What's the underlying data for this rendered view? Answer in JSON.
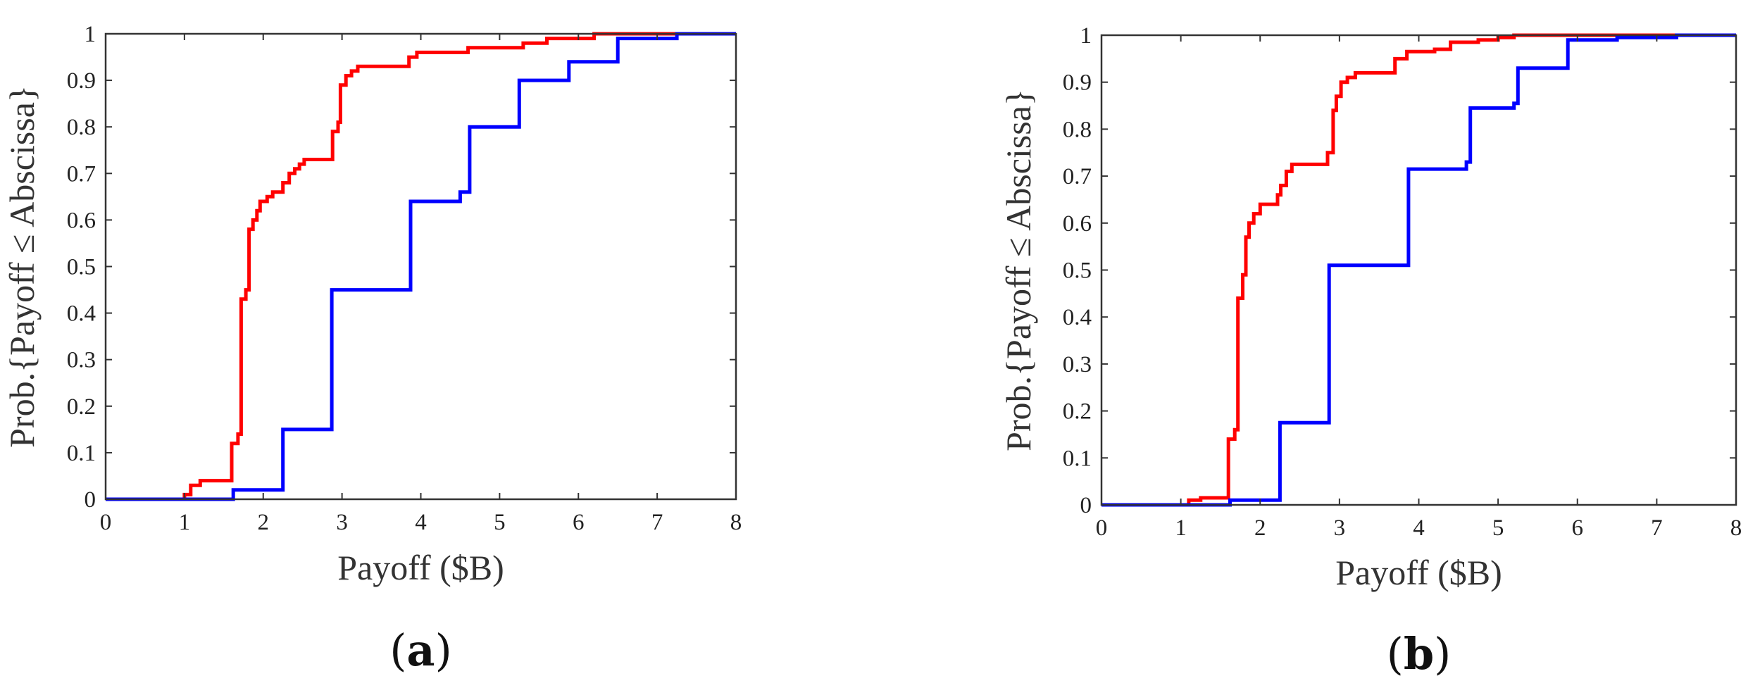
{
  "chart_data": [
    {
      "type": "line",
      "panel_label": "a",
      "xlabel": "Payoff ($B)",
      "ylabel": "Prob.{Payoff ≤ Abscissa}",
      "xlim": [
        0,
        8
      ],
      "ylim": [
        0,
        1
      ],
      "xticks": [
        "0",
        "1",
        "2",
        "3",
        "4",
        "5",
        "6",
        "7",
        "8"
      ],
      "yticks": [
        "0",
        "0.1",
        "0.2",
        "0.3",
        "0.4",
        "0.5",
        "0.6",
        "0.7",
        "0.8",
        "0.9",
        "1"
      ],
      "grid": false,
      "series": [
        {
          "color": "#ff0000",
          "step": true,
          "points": [
            [
              0,
              0
            ],
            [
              1.0,
              0
            ],
            [
              1.0,
              0.01
            ],
            [
              1.08,
              0.01
            ],
            [
              1.08,
              0.03
            ],
            [
              1.2,
              0.03
            ],
            [
              1.2,
              0.04
            ],
            [
              1.6,
              0.04
            ],
            [
              1.6,
              0.12
            ],
            [
              1.68,
              0.12
            ],
            [
              1.68,
              0.14
            ],
            [
              1.72,
              0.14
            ],
            [
              1.72,
              0.43
            ],
            [
              1.78,
              0.43
            ],
            [
              1.78,
              0.45
            ],
            [
              1.82,
              0.45
            ],
            [
              1.82,
              0.58
            ],
            [
              1.87,
              0.58
            ],
            [
              1.87,
              0.6
            ],
            [
              1.92,
              0.6
            ],
            [
              1.92,
              0.62
            ],
            [
              1.96,
              0.62
            ],
            [
              1.96,
              0.64
            ],
            [
              2.05,
              0.64
            ],
            [
              2.05,
              0.65
            ],
            [
              2.12,
              0.65
            ],
            [
              2.12,
              0.66
            ],
            [
              2.25,
              0.66
            ],
            [
              2.25,
              0.68
            ],
            [
              2.33,
              0.68
            ],
            [
              2.33,
              0.7
            ],
            [
              2.4,
              0.7
            ],
            [
              2.4,
              0.71
            ],
            [
              2.46,
              0.71
            ],
            [
              2.46,
              0.72
            ],
            [
              2.52,
              0.72
            ],
            [
              2.52,
              0.73
            ],
            [
              2.88,
              0.73
            ],
            [
              2.88,
              0.79
            ],
            [
              2.95,
              0.79
            ],
            [
              2.95,
              0.81
            ],
            [
              2.98,
              0.81
            ],
            [
              2.98,
              0.89
            ],
            [
              3.05,
              0.89
            ],
            [
              3.05,
              0.91
            ],
            [
              3.12,
              0.91
            ],
            [
              3.12,
              0.92
            ],
            [
              3.2,
              0.92
            ],
            [
              3.2,
              0.93
            ],
            [
              3.85,
              0.93
            ],
            [
              3.85,
              0.95
            ],
            [
              3.95,
              0.95
            ],
            [
              3.95,
              0.96
            ],
            [
              4.6,
              0.96
            ],
            [
              4.6,
              0.97
            ],
            [
              5.3,
              0.97
            ],
            [
              5.3,
              0.98
            ],
            [
              5.6,
              0.98
            ],
            [
              5.6,
              0.99
            ],
            [
              6.2,
              0.99
            ],
            [
              6.2,
              1.0
            ],
            [
              8.0,
              1.0
            ]
          ]
        },
        {
          "color": "#0000ff",
          "step": true,
          "points": [
            [
              0,
              0
            ],
            [
              1.62,
              0
            ],
            [
              1.62,
              0.02
            ],
            [
              2.25,
              0.02
            ],
            [
              2.25,
              0.15
            ],
            [
              2.87,
              0.15
            ],
            [
              2.87,
              0.45
            ],
            [
              3.87,
              0.45
            ],
            [
              3.87,
              0.64
            ],
            [
              4.5,
              0.64
            ],
            [
              4.5,
              0.66
            ],
            [
              4.62,
              0.66
            ],
            [
              4.62,
              0.8
            ],
            [
              5.25,
              0.8
            ],
            [
              5.25,
              0.9
            ],
            [
              5.88,
              0.9
            ],
            [
              5.88,
              0.94
            ],
            [
              6.5,
              0.94
            ],
            [
              6.5,
              0.99
            ],
            [
              7.25,
              0.99
            ],
            [
              7.25,
              1.0
            ],
            [
              8.0,
              1.0
            ]
          ]
        }
      ]
    },
    {
      "type": "line",
      "panel_label": "b",
      "xlabel": "Payoff ($B)",
      "ylabel": "Prob.{Payoff ≤ Abscissa}",
      "xlim": [
        0,
        8
      ],
      "ylim": [
        0,
        1
      ],
      "xticks": [
        "0",
        "1",
        "2",
        "3",
        "4",
        "5",
        "6",
        "7",
        "8"
      ],
      "yticks": [
        "0",
        "0.1",
        "0.2",
        "0.3",
        "0.4",
        "0.5",
        "0.6",
        "0.7",
        "0.8",
        "0.9",
        "1"
      ],
      "grid": false,
      "series": [
        {
          "color": "#ff0000",
          "step": true,
          "points": [
            [
              0,
              0
            ],
            [
              1.1,
              0
            ],
            [
              1.1,
              0.01
            ],
            [
              1.25,
              0.01
            ],
            [
              1.25,
              0.015
            ],
            [
              1.6,
              0.015
            ],
            [
              1.6,
              0.14
            ],
            [
              1.68,
              0.14
            ],
            [
              1.68,
              0.16
            ],
            [
              1.72,
              0.16
            ],
            [
              1.72,
              0.44
            ],
            [
              1.78,
              0.44
            ],
            [
              1.78,
              0.49
            ],
            [
              1.82,
              0.49
            ],
            [
              1.82,
              0.57
            ],
            [
              1.86,
              0.57
            ],
            [
              1.86,
              0.6
            ],
            [
              1.92,
              0.6
            ],
            [
              1.92,
              0.62
            ],
            [
              2.0,
              0.62
            ],
            [
              2.0,
              0.64
            ],
            [
              2.22,
              0.64
            ],
            [
              2.22,
              0.66
            ],
            [
              2.26,
              0.66
            ],
            [
              2.26,
              0.68
            ],
            [
              2.33,
              0.68
            ],
            [
              2.33,
              0.71
            ],
            [
              2.4,
              0.71
            ],
            [
              2.4,
              0.725
            ],
            [
              2.85,
              0.725
            ],
            [
              2.85,
              0.75
            ],
            [
              2.92,
              0.75
            ],
            [
              2.92,
              0.84
            ],
            [
              2.96,
              0.84
            ],
            [
              2.96,
              0.87
            ],
            [
              3.02,
              0.87
            ],
            [
              3.02,
              0.9
            ],
            [
              3.1,
              0.9
            ],
            [
              3.1,
              0.91
            ],
            [
              3.2,
              0.91
            ],
            [
              3.2,
              0.92
            ],
            [
              3.7,
              0.92
            ],
            [
              3.7,
              0.95
            ],
            [
              3.85,
              0.95
            ],
            [
              3.85,
              0.965
            ],
            [
              4.2,
              0.965
            ],
            [
              4.2,
              0.97
            ],
            [
              4.4,
              0.97
            ],
            [
              4.4,
              0.985
            ],
            [
              4.75,
              0.985
            ],
            [
              4.75,
              0.99
            ],
            [
              5.0,
              0.99
            ],
            [
              5.0,
              0.995
            ],
            [
              5.2,
              0.995
            ],
            [
              5.2,
              1.0
            ],
            [
              8.0,
              1.0
            ]
          ]
        },
        {
          "color": "#0000ff",
          "step": true,
          "points": [
            [
              0,
              0
            ],
            [
              1.62,
              0
            ],
            [
              1.62,
              0.01
            ],
            [
              2.25,
              0.01
            ],
            [
              2.25,
              0.175
            ],
            [
              2.87,
              0.175
            ],
            [
              2.87,
              0.51
            ],
            [
              3.87,
              0.51
            ],
            [
              3.87,
              0.715
            ],
            [
              4.6,
              0.715
            ],
            [
              4.6,
              0.73
            ],
            [
              4.65,
              0.73
            ],
            [
              4.65,
              0.845
            ],
            [
              5.2,
              0.845
            ],
            [
              5.2,
              0.855
            ],
            [
              5.25,
              0.855
            ],
            [
              5.25,
              0.93
            ],
            [
              5.88,
              0.93
            ],
            [
              5.88,
              0.99
            ],
            [
              6.5,
              0.99
            ],
            [
              6.5,
              0.995
            ],
            [
              7.25,
              0.995
            ],
            [
              7.25,
              1.0
            ],
            [
              8.0,
              1.0
            ]
          ]
        }
      ]
    }
  ]
}
